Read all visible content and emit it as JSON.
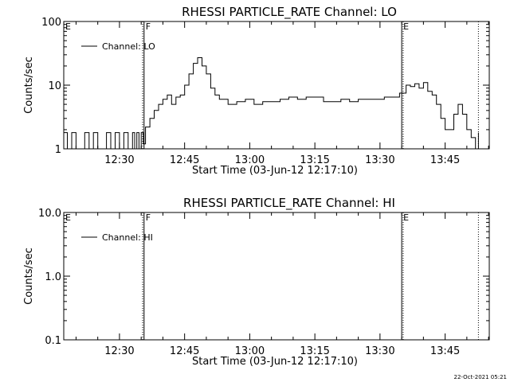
{
  "footer": {
    "timestamp": "22-Oct-2021 05:21"
  },
  "chart_data": [
    {
      "type": "line",
      "title": "RHESSI PARTICLE_RATE Channel: LO",
      "xlabel": "Start Time (03-Jun-12 12:17:10)",
      "ylabel": "Counts/sec",
      "yscale": "log",
      "xlim": [
        "12:17:10",
        "13:55:10"
      ],
      "ylim": [
        1,
        100
      ],
      "xticks": [
        "12:30",
        "12:45",
        "13:00",
        "13:15",
        "13:30",
        "13:45"
      ],
      "yticks": [
        "1",
        "10",
        "100"
      ],
      "markers": [
        {
          "label": "E",
          "time": "12:17:10",
          "style": "solid"
        },
        {
          "label": "F",
          "time": "12:35:40",
          "style": "solid"
        },
        {
          "label": "",
          "time": "12:35:20",
          "style": "dotted"
        },
        {
          "label": "E",
          "time": "13:35:00",
          "style": "solid"
        },
        {
          "label": "",
          "time": "13:35:20",
          "style": "dotted"
        },
        {
          "label": "",
          "time": "13:52:40",
          "style": "dotted"
        }
      ],
      "legend": {
        "entries": [
          "Channel: LO"
        ],
        "position": "top-left"
      },
      "series": [
        {
          "name": "Channel: LO",
          "x": [
            "12:17:10",
            "12:18:00",
            "12:19:00",
            "12:20:00",
            "12:21:00",
            "12:22:00",
            "12:23:00",
            "12:24:00",
            "12:25:00",
            "12:26:00",
            "12:27:00",
            "12:28:00",
            "12:29:00",
            "12:30:00",
            "12:31:00",
            "12:32:00",
            "12:33:00",
            "12:33:30",
            "12:34:00",
            "12:34:30",
            "12:35:00",
            "12:35:30",
            "12:36:00",
            "12:37:00",
            "12:38:00",
            "12:39:00",
            "12:40:00",
            "12:41:00",
            "12:42:00",
            "12:43:00",
            "12:44:00",
            "12:45:00",
            "12:46:00",
            "12:47:00",
            "12:48:00",
            "12:49:00",
            "12:50:00",
            "12:51:00",
            "12:52:00",
            "12:53:00",
            "12:55:00",
            "12:57:00",
            "12:59:00",
            "13:01:00",
            "13:03:00",
            "13:05:00",
            "13:07:00",
            "13:09:00",
            "13:11:00",
            "13:13:00",
            "13:15:00",
            "13:17:00",
            "13:19:00",
            "13:21:00",
            "13:23:00",
            "13:25:00",
            "13:27:00",
            "13:29:00",
            "13:31:00",
            "13:33:00",
            "13:34:30",
            "13:36:00",
            "13:37:00",
            "13:38:00",
            "13:39:00",
            "13:40:00",
            "13:41:00",
            "13:42:00",
            "13:43:00",
            "13:44:00",
            "13:45:00",
            "13:46:00",
            "13:47:00",
            "13:48:00",
            "13:49:00",
            "13:50:00",
            "13:51:00",
            "13:52:00",
            "13:52:40"
          ],
          "values": [
            1.8,
            1.0,
            1.8,
            1.0,
            1.0,
            1.8,
            1.0,
            1.8,
            1.0,
            1.0,
            1.8,
            1.0,
            1.8,
            1.0,
            1.8,
            1.0,
            1.8,
            1.0,
            1.8,
            1.0,
            1.8,
            1.2,
            2.2,
            3.0,
            4.0,
            5.0,
            6.0,
            7.0,
            5.0,
            6.5,
            7.0,
            10.0,
            15.0,
            22.0,
            27.0,
            20.0,
            15.0,
            9.0,
            7.0,
            6.0,
            5.0,
            5.5,
            6.0,
            5.0,
            5.5,
            5.5,
            6.0,
            6.5,
            6.0,
            6.5,
            6.5,
            5.5,
            5.5,
            6.0,
            5.5,
            6.0,
            6.0,
            6.0,
            6.5,
            6.5,
            7.5,
            10.0,
            9.5,
            10.5,
            9.0,
            11.0,
            8.0,
            7.0,
            5.0,
            3.0,
            2.0,
            2.0,
            3.5,
            5.0,
            3.5,
            2.0,
            1.5,
            1.0,
            1.8
          ]
        }
      ]
    },
    {
      "type": "line",
      "title": "RHESSI PARTICLE_RATE Channel: HI",
      "xlabel": "Start Time (03-Jun-12 12:17:10)",
      "ylabel": "Counts/sec",
      "yscale": "log",
      "xlim": [
        "12:17:10",
        "13:55:10"
      ],
      "ylim": [
        0.1,
        10
      ],
      "xticks": [
        "12:30",
        "12:45",
        "13:00",
        "13:15",
        "13:30",
        "13:45"
      ],
      "yticks": [
        "0.1",
        "1.0",
        "10.0"
      ],
      "markers": [
        {
          "label": "E",
          "time": "12:17:10",
          "style": "solid"
        },
        {
          "label": "F",
          "time": "12:35:40",
          "style": "solid"
        },
        {
          "label": "",
          "time": "12:35:20",
          "style": "dotted"
        },
        {
          "label": "E",
          "time": "13:35:00",
          "style": "solid"
        },
        {
          "label": "",
          "time": "13:35:20",
          "style": "dotted"
        },
        {
          "label": "",
          "time": "13:52:40",
          "style": "dotted"
        }
      ],
      "legend": {
        "entries": [
          "Channel: HI"
        ],
        "position": "top-left"
      },
      "series": [
        {
          "name": "Channel: HI",
          "x": [],
          "values": []
        }
      ]
    }
  ]
}
